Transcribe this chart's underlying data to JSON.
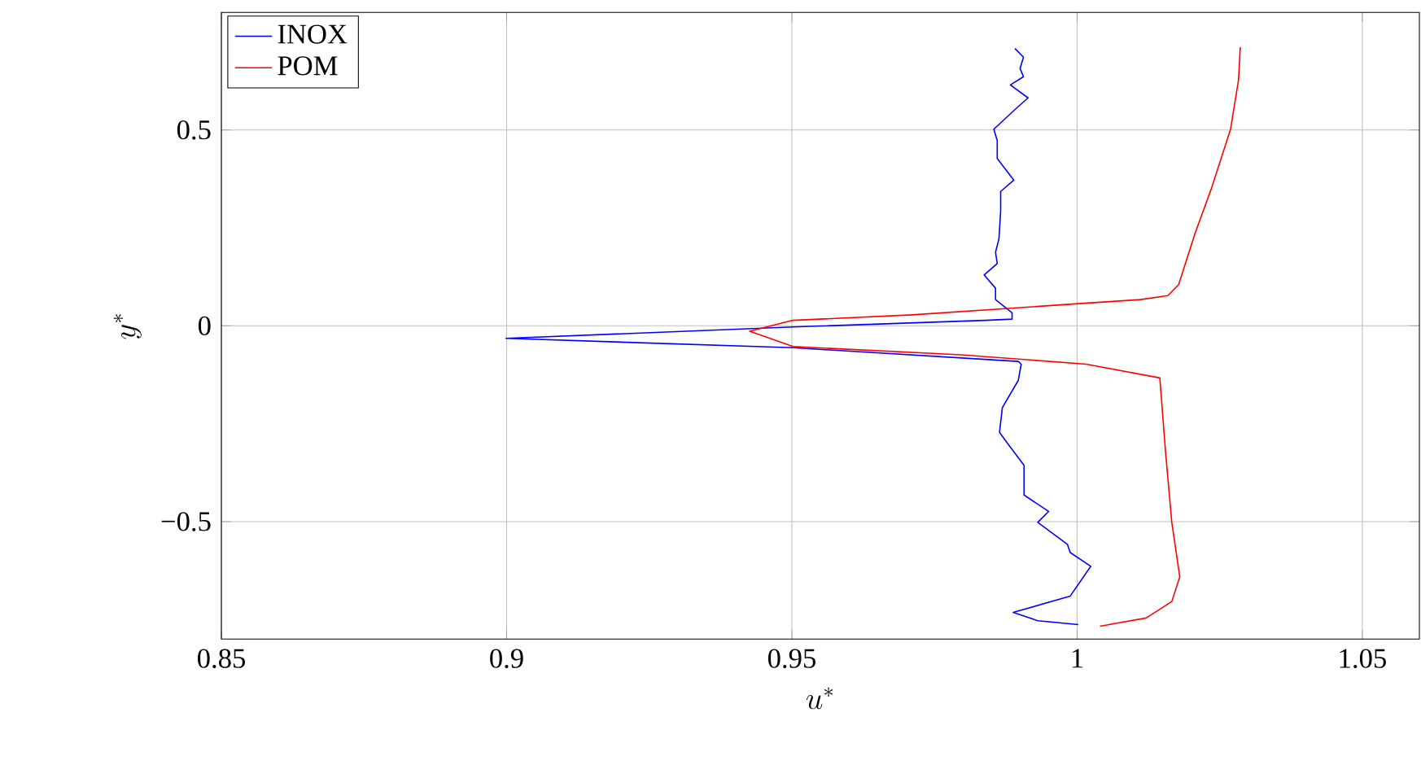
{
  "chart_data": {
    "type": "line",
    "xlabel": "u^*",
    "ylabel": "y^*",
    "xlim": [
      0.85,
      1.06
    ],
    "ylim": [
      -0.8,
      0.8
    ],
    "xticks": [
      0.85,
      0.9,
      0.95,
      1,
      1.05
    ],
    "yticks": [
      {
        "value": -0.5,
        "label": "−0.5"
      },
      0,
      0.5
    ],
    "grid": true,
    "legend": "top left",
    "marker": "none",
    "line_style": "solid",
    "series": [
      {
        "name": "INOX",
        "color": "#0000ff",
        "x": [
          0.9891,
          0.9906,
          0.99,
          0.9906,
          0.9883,
          0.9914,
          0.9894,
          0.9854,
          0.986,
          0.986,
          0.9889,
          0.9866,
          0.9866,
          0.9863,
          0.9857,
          0.986,
          0.9837,
          0.9857,
          0.9857,
          0.9886,
          0.9886,
          0.984,
          0.9502,
          0.8999,
          0.9502,
          0.9797,
          0.9897,
          0.9902,
          0.9897,
          0.9869,
          0.9864,
          0.9878,
          0.9907,
          0.9907,
          0.995,
          0.9931,
          0.9983,
          0.9988,
          1.0024,
          0.9988,
          0.9888,
          0.9931,
          1.0002
        ],
        "values": [
          0.708,
          0.686,
          0.657,
          0.636,
          0.615,
          0.582,
          0.556,
          0.502,
          0.473,
          0.427,
          0.372,
          0.343,
          0.293,
          0.222,
          0.188,
          0.159,
          0.13,
          0.096,
          0.067,
          0.033,
          0.017,
          0.014,
          -0.003,
          -0.032,
          -0.056,
          null,
          -0.091,
          -0.098,
          -0.139,
          -0.209,
          -0.272,
          -0.3,
          -0.356,
          -0.432,
          -0.474,
          -0.502,
          -0.558,
          -0.579,
          -0.614,
          -0.69,
          -0.732,
          -0.753,
          -0.763
        ]
      },
      {
        "name": "POM",
        "color": "#ff0000",
        "x": [
          1.0286,
          1.0283,
          1.0269,
          1.0235,
          1.0207,
          1.0178,
          1.0159,
          1.0111,
          0.9997,
          0.9711,
          0.9502,
          0.9426,
          0.9502,
          0.9797,
          1.0016,
          1.0145,
          1.0155,
          1.0166,
          1.018,
          1.0166,
          1.0121,
          1.004
        ],
        "values": [
          0.711,
          0.628,
          0.502,
          0.349,
          0.237,
          0.105,
          0.077,
          0.067,
          0.056,
          0.028,
          0.014,
          -0.014,
          -0.053,
          -0.074,
          -0.098,
          -0.133,
          -0.321,
          -0.502,
          -0.641,
          -0.704,
          -0.746,
          -0.767
        ]
      }
    ]
  }
}
